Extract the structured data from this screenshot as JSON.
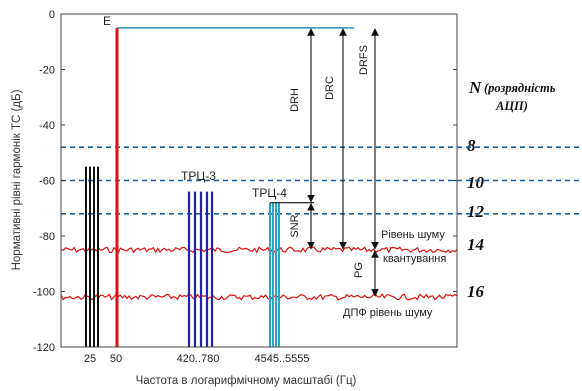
{
  "chart_data": {
    "type": "line",
    "xlabel": "Частота в логарифмічному масштабі (Гц)",
    "ylabel": "Нормативні рівні гармонік ТС (дБ)",
    "ylim": [
      -120,
      0
    ],
    "yticks": [
      0,
      -20,
      -40,
      -60,
      -80,
      -100,
      -120
    ],
    "ytick_labels": [
      "0",
      "-20",
      "-40",
      "-60",
      "-80",
      "-100",
      "-120"
    ],
    "xtick_labels": [
      "25",
      "50",
      "420..780",
      "4545..5555"
    ],
    "grid": false,
    "signal": {
      "label": "E",
      "level": -5,
      "color": "#dd1111"
    },
    "black_lines_top": -55,
    "trc3": {
      "label": "ТРЦ-3",
      "top": -64,
      "color": "#2222aa"
    },
    "trc4": {
      "label": "ТРЦ-4",
      "top": -68,
      "color": "#2aa6c9"
    },
    "noise_floors": [
      {
        "level": -85,
        "label_line1": "Рівень шуму",
        "label_line2": "квантування"
      },
      {
        "level": -102,
        "label_line1": "ДПФ рівень шуму",
        "label_line2": ""
      }
    ],
    "noise_color": "#dd1111",
    "adc_levels": [
      {
        "bits": "8",
        "level": -48
      },
      {
        "bits": "10",
        "level": -60
      },
      {
        "bits": "12",
        "level": -72
      },
      {
        "bits": "14",
        "level": -84
      },
      {
        "bits": "16",
        "level": -102
      }
    ],
    "adc_line_color": "#1a5e9a",
    "n_title_main": "N",
    "n_title_rest": "(розрядність",
    "n_title_line2": "АЦП)",
    "ranges": [
      {
        "label": "DRH",
        "from": -5,
        "to": -68
      },
      {
        "label": "DRC",
        "from": -5,
        "to": -85
      },
      {
        "label": "DRFS",
        "from": -5,
        "to": -85
      },
      {
        "label": "SNR",
        "from": -68,
        "to": -85
      },
      {
        "label": "PG",
        "from": -85,
        "to": -102
      }
    ]
  }
}
